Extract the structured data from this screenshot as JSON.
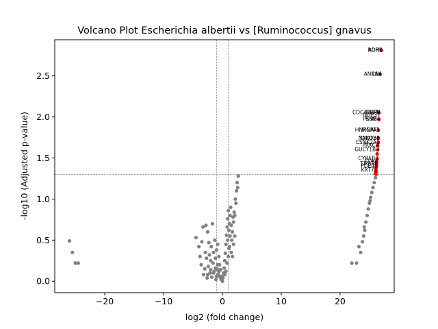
{
  "chart_data": {
    "type": "scatter",
    "title": "Volcano Plot Escherichia albertii vs [Ruminococcus] gnavus",
    "xlabel": "log2 (fold change)",
    "ylabel": "-log10 (Adjusted p-value)",
    "xlim": [
      -28.5,
      29.2
    ],
    "ylim": [
      -0.14,
      2.94
    ],
    "xticks": [
      -20,
      -10,
      0,
      10,
      20
    ],
    "yticks": [
      0.0,
      0.5,
      1.0,
      1.5,
      2.0,
      2.5
    ],
    "xtick_labels": [
      "−20",
      "−10",
      "0",
      "10",
      "20"
    ],
    "ytick_labels": [
      "0.0",
      "0.5",
      "1.0",
      "1.5",
      "2.0",
      "2.5"
    ],
    "grid": false,
    "threshold_lines": {
      "x": [
        -1,
        1
      ],
      "y": [
        1.301
      ]
    },
    "colors": {
      "significant": "#ff0000",
      "nonsignificant": "#808080",
      "threshold": "#808080"
    },
    "series": [
      {
        "name": "",
        "color": "#808080",
        "points": [
          [
            -26.0,
            0.49
          ],
          [
            -25.5,
            0.35
          ],
          [
            -25.0,
            0.22
          ],
          [
            -24.5,
            0.22
          ],
          [
            -4.5,
            0.53
          ],
          [
            -4.0,
            0.42
          ],
          [
            -3.8,
            0.3
          ],
          [
            -3.6,
            0.2
          ],
          [
            -3.5,
            0.48
          ],
          [
            -3.3,
            0.66
          ],
          [
            -3.2,
            0.08
          ],
          [
            -3.0,
            0.15
          ],
          [
            -2.9,
            0.35
          ],
          [
            -2.8,
            0.68
          ],
          [
            -2.7,
            0.28
          ],
          [
            -2.6,
            0.04
          ],
          [
            -2.5,
            0.6
          ],
          [
            -2.4,
            0.18
          ],
          [
            -2.3,
            0.47
          ],
          [
            -2.2,
            0.32
          ],
          [
            -2.1,
            0.1
          ],
          [
            -2.0,
            0.25
          ],
          [
            -1.9,
            0.42
          ],
          [
            -1.8,
            0.05
          ],
          [
            -1.7,
            0.7
          ],
          [
            -1.6,
            0.22
          ],
          [
            -1.5,
            0.35
          ],
          [
            -1.4,
            0.12
          ],
          [
            -1.3,
            0.5
          ],
          [
            -1.2,
            0.28
          ],
          [
            -1.1,
            0.02
          ],
          [
            -1.0,
            0.38
          ],
          [
            -0.9,
            0.15
          ],
          [
            -0.8,
            0.45
          ],
          [
            -0.7,
            0.08
          ],
          [
            -0.6,
            0.3
          ],
          [
            -0.5,
            0.2
          ],
          [
            -0.4,
            0.05
          ],
          [
            -0.3,
            0.14
          ],
          [
            -0.2,
            0.02
          ],
          [
            -0.1,
            0.06
          ],
          [
            0.0,
            0.0
          ],
          [
            0.1,
            0.04
          ],
          [
            0.2,
            0.1
          ],
          [
            0.3,
            0.16
          ],
          [
            0.4,
            0.25
          ],
          [
            0.5,
            0.34
          ],
          [
            0.6,
            0.45
          ],
          [
            0.7,
            0.56
          ],
          [
            0.8,
            0.66
          ],
          [
            0.9,
            0.76
          ],
          [
            1.0,
            0.86
          ],
          [
            1.1,
            0.62
          ],
          [
            1.2,
            0.7
          ],
          [
            1.3,
            0.8
          ],
          [
            1.4,
            0.9
          ],
          [
            1.5,
            0.68
          ],
          [
            1.6,
            0.5
          ],
          [
            1.7,
            0.6
          ],
          [
            1.8,
            0.78
          ],
          [
            1.9,
            0.72
          ],
          [
            2.0,
            0.84
          ],
          [
            2.1,
            0.55
          ],
          [
            2.2,
            1.0
          ],
          [
            2.3,
            0.95
          ],
          [
            2.4,
            1.1
          ],
          [
            2.5,
            1.2
          ],
          [
            2.6,
            1.14
          ],
          [
            2.7,
            1.28
          ],
          [
            0.6,
            0.12
          ],
          [
            0.8,
            0.22
          ],
          [
            1.0,
            0.3
          ],
          [
            1.2,
            0.42
          ],
          [
            0.4,
            0.08
          ],
          [
            -0.6,
            0.12
          ],
          [
            -0.8,
            0.2
          ],
          [
            -1.0,
            0.06
          ],
          [
            -1.2,
            0.16
          ],
          [
            -1.5,
            0.1
          ],
          [
            -2.0,
            0.14
          ],
          [
            -2.5,
            0.08
          ],
          [
            0.9,
            0.5
          ],
          [
            1.1,
            0.4
          ],
          [
            1.3,
            0.55
          ],
          [
            1.5,
            0.35
          ],
          [
            1.7,
            0.3
          ],
          [
            1.9,
            0.45
          ],
          [
            2.1,
            0.8
          ],
          [
            22.0,
            0.22
          ],
          [
            22.8,
            0.22
          ],
          [
            23.5,
            0.35
          ],
          [
            23.8,
            0.48
          ],
          [
            24.0,
            0.55
          ],
          [
            24.2,
            0.62
          ],
          [
            24.4,
            0.72
          ],
          [
            24.6,
            0.8
          ],
          [
            24.8,
            0.88
          ],
          [
            25.0,
            0.95
          ],
          [
            25.2,
            1.02
          ],
          [
            25.4,
            1.08
          ],
          [
            25.6,
            1.14
          ],
          [
            25.8,
            1.2
          ],
          [
            26.0,
            1.26
          ],
          [
            26.2,
            1.3
          ],
          [
            23.2,
            0.42
          ],
          [
            24.1,
            0.66
          ],
          [
            25.1,
            0.98
          ]
        ]
      },
      {
        "name": "",
        "color": "#ff0000",
        "points": [
          [
            27.0,
            2.81
          ],
          [
            26.8,
            2.52
          ],
          [
            26.6,
            2.05
          ],
          [
            26.6,
            1.97
          ],
          [
            26.5,
            1.84
          ],
          [
            26.5,
            1.74
          ],
          [
            26.5,
            1.69
          ],
          [
            26.4,
            1.65
          ],
          [
            26.4,
            1.6
          ],
          [
            26.3,
            1.55
          ],
          [
            26.3,
            1.49
          ],
          [
            26.2,
            1.46
          ],
          [
            26.2,
            1.43
          ],
          [
            26.2,
            1.4
          ],
          [
            26.1,
            1.38
          ],
          [
            26.1,
            1.35
          ],
          [
            26.1,
            1.33
          ],
          [
            26.0,
            1.31
          ]
        ]
      }
    ],
    "annotations": [
      {
        "text": "RORB",
        "x": 27.0,
        "y": 2.81
      },
      {
        "text": "ADH1",
        "x": 27.0,
        "y": 2.81
      },
      {
        "text": "ANXA4",
        "x": 26.8,
        "y": 2.52
      },
      {
        "text": "CSK",
        "x": 26.8,
        "y": 2.52
      },
      {
        "text": "CDC42BPB",
        "x": 26.6,
        "y": 2.05
      },
      {
        "text": "NEFM",
        "x": 26.6,
        "y": 2.05
      },
      {
        "text": "NUP37",
        "x": 26.6,
        "y": 2.02
      },
      {
        "text": "RBM4",
        "x": 26.6,
        "y": 1.97
      },
      {
        "text": "PSMB4",
        "x": 26.6,
        "y": 1.97
      },
      {
        "text": "HNRNPA1",
        "x": 26.5,
        "y": 1.84
      },
      {
        "text": "MGAT5",
        "x": 26.5,
        "y": 1.84
      },
      {
        "text": "NUDT21",
        "x": 26.5,
        "y": 1.74
      },
      {
        "text": "TARDBP",
        "x": 26.5,
        "y": 1.74
      },
      {
        "text": "CSNK2A1",
        "x": 26.5,
        "y": 1.69
      },
      {
        "text": "PRKCA",
        "x": 26.4,
        "y": 1.65
      },
      {
        "text": "GUCY1B3",
        "x": 26.4,
        "y": 1.6
      },
      {
        "text": "CYB5R3",
        "x": 26.3,
        "y": 1.49
      },
      {
        "text": "CDK2",
        "x": 26.3,
        "y": 1.46
      },
      {
        "text": "TIPARP",
        "x": 26.2,
        "y": 1.43
      },
      {
        "text": "PDE4B",
        "x": 26.2,
        "y": 1.4
      },
      {
        "text": "KRT72",
        "x": 26.1,
        "y": 1.35
      }
    ]
  }
}
